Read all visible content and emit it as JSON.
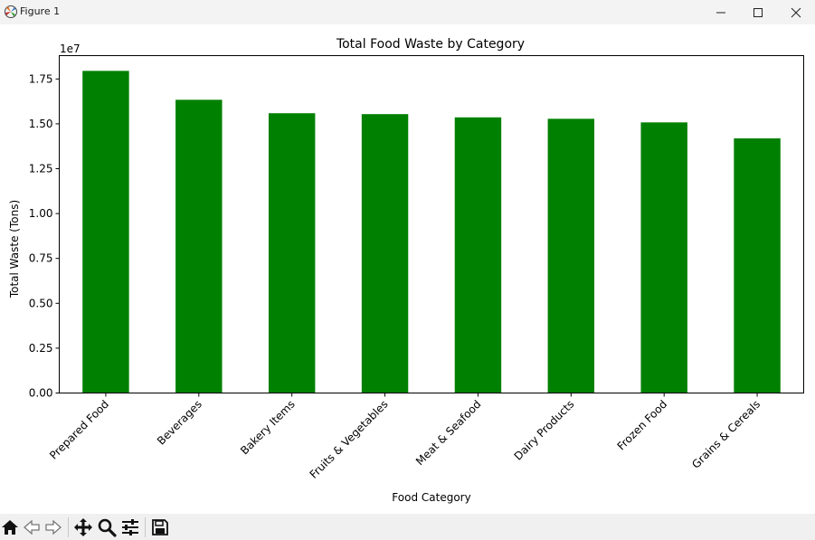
{
  "window": {
    "title": "Figure 1",
    "icons": {
      "app": "matplotlib-icon",
      "minimize": "minimize-icon",
      "maximize": "maximize-icon",
      "close": "close-icon"
    }
  },
  "toolbar": {
    "buttons": [
      {
        "icon": "home-icon"
      },
      {
        "icon": "back-arrow-icon"
      },
      {
        "icon": "forward-arrow-icon"
      },
      {
        "icon": "pan-icon"
      },
      {
        "icon": "zoom-icon"
      },
      {
        "icon": "configure-subplots-icon"
      },
      {
        "icon": "save-icon"
      }
    ]
  },
  "chart_data": {
    "type": "bar",
    "title": "Total Food Waste by Category",
    "xlabel": "Food Category",
    "ylabel": "Total Waste (Tons)",
    "offset_label": "1e7",
    "categories": [
      "Prepared Food",
      "Beverages",
      "Bakery Items",
      "Fruits & Vegetables",
      "Meat & Seafood",
      "Dairy Products",
      "Frozen Food",
      "Grains & Cereals"
    ],
    "values": [
      17950000,
      16340000,
      15590000,
      15540000,
      15360000,
      15280000,
      15080000,
      14190000
    ],
    "ylim": [
      0,
      18800000
    ],
    "yticks": [
      0,
      2500000,
      5000000,
      7500000,
      10000000,
      12500000,
      15000000,
      17500000
    ],
    "ytick_labels": [
      "0.00",
      "0.25",
      "0.50",
      "0.75",
      "1.00",
      "1.25",
      "1.50",
      "1.75"
    ],
    "bar_color": "#008000",
    "grid": false
  }
}
